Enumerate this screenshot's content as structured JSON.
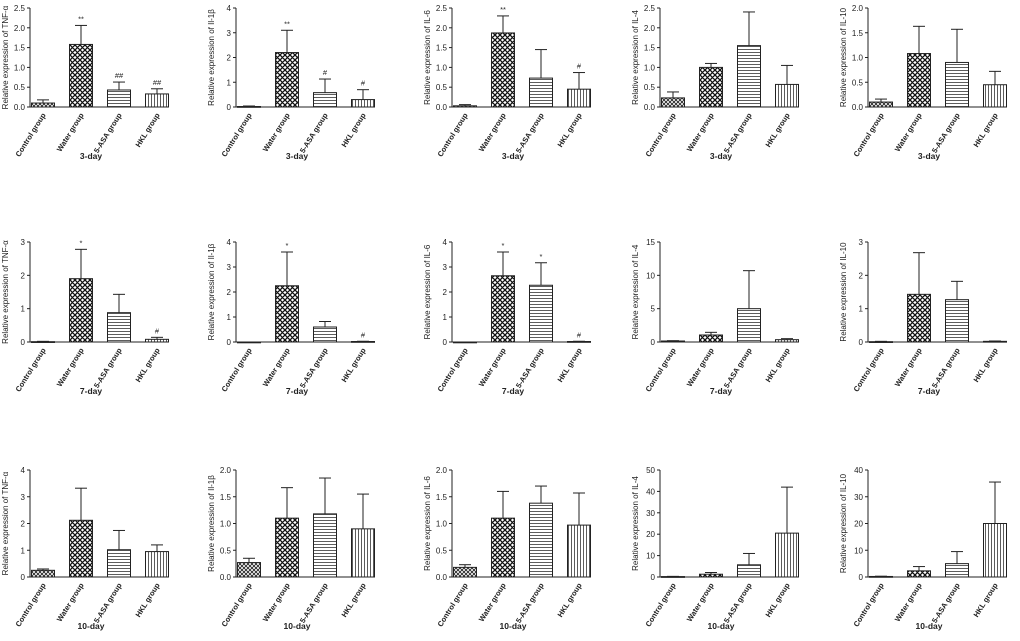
{
  "patterns": {
    "Control group": "crosshatch-dense",
    "Water group": "checker",
    "5-ASA group": "horizontal-lines",
    "HKL group": "vertical-lines"
  },
  "chart_data": [
    {
      "type": "bar",
      "ylabel": "Relative expression of TNF-α",
      "xlabel": "3-day",
      "categories": [
        "Control group",
        "Water group",
        "5-ASA group",
        "HKL group"
      ],
      "values": [
        0.1,
        1.58,
        0.43,
        0.33
      ],
      "errors": [
        0.08,
        0.48,
        0.2,
        0.13
      ],
      "sig": [
        "",
        "**",
        "##",
        "##"
      ],
      "ylim": [
        0,
        2.5
      ],
      "yticks": [
        0,
        0.5,
        1.0,
        1.5,
        2.0,
        2.5
      ],
      "tick_labels": [
        "0.0",
        "0.5",
        "1.0",
        "1.5",
        "2.0",
        "2.5"
      ]
    },
    {
      "type": "bar",
      "ylabel": "Relative expression of Il-1β",
      "xlabel": "3-day",
      "categories": [
        "Control group",
        "Water group",
        "5-ASA group",
        "HKL group"
      ],
      "values": [
        0.02,
        2.2,
        0.58,
        0.3
      ],
      "errors": [
        0.02,
        0.9,
        0.55,
        0.4
      ],
      "sig": [
        "",
        "**",
        "#",
        "#"
      ],
      "ylim": [
        0,
        4
      ],
      "yticks": [
        0,
        1,
        2,
        3,
        4
      ],
      "tick_labels": [
        "0",
        "1",
        "2",
        "3",
        "4"
      ]
    },
    {
      "type": "bar",
      "ylabel": "Relative expression of IL-6",
      "xlabel": "3-day",
      "categories": [
        "Control group",
        "Water group",
        "5-ASA group",
        "HKL group"
      ],
      "values": [
        0.03,
        1.87,
        0.73,
        0.45
      ],
      "errors": [
        0.03,
        0.43,
        0.72,
        0.42
      ],
      "sig": [
        "",
        "**",
        "",
        "#"
      ],
      "ylim": [
        0,
        2.5
      ],
      "yticks": [
        0,
        0.5,
        1.0,
        1.5,
        2.0,
        2.5
      ],
      "tick_labels": [
        "0.0",
        "0.5",
        "1.0",
        "1.5",
        "2.0",
        "2.5"
      ]
    },
    {
      "type": "bar",
      "ylabel": "Relative expression of IL-4",
      "xlabel": "3-day",
      "categories": [
        "Control group",
        "Water group",
        "5-ASA group",
        "HKL group"
      ],
      "values": [
        0.23,
        1.0,
        1.55,
        0.57
      ],
      "errors": [
        0.15,
        0.1,
        0.85,
        0.48
      ],
      "sig": [
        "",
        "",
        "",
        ""
      ],
      "ylim": [
        0,
        2.5
      ],
      "yticks": [
        0,
        0.5,
        1.0,
        1.5,
        2.0,
        2.5
      ],
      "tick_labels": [
        "0.0",
        "0.5",
        "1.0",
        "1.5",
        "2.0",
        "2.5"
      ]
    },
    {
      "type": "bar",
      "ylabel": "Relative expression of IL-10",
      "xlabel": "3-day",
      "categories": [
        "Control group",
        "Water group",
        "5-ASA group",
        "HKL group"
      ],
      "values": [
        0.1,
        1.08,
        0.9,
        0.45
      ],
      "errors": [
        0.06,
        0.55,
        0.67,
        0.27
      ],
      "sig": [
        "",
        "",
        "",
        ""
      ],
      "ylim": [
        0,
        2.0
      ],
      "yticks": [
        0,
        0.5,
        1.0,
        1.5,
        2.0
      ],
      "tick_labels": [
        "0.0",
        "0.5",
        "1.0",
        "1.5",
        "2.0"
      ]
    },
    {
      "type": "bar",
      "ylabel": "Relative expression of TNF-α",
      "xlabel": "7-day",
      "categories": [
        "Control group",
        "Water group",
        "5-ASA group",
        "HKL group"
      ],
      "values": [
        0.01,
        1.9,
        0.88,
        0.08
      ],
      "errors": [
        0.01,
        0.88,
        0.55,
        0.06
      ],
      "sig": [
        "",
        "*",
        "",
        "#"
      ],
      "ylim": [
        0,
        3
      ],
      "yticks": [
        0,
        1,
        2,
        3
      ],
      "tick_labels": [
        "0",
        "1",
        "2",
        "3"
      ]
    },
    {
      "type": "bar",
      "ylabel": "Relative expression of Il-1β",
      "xlabel": "7-day",
      "categories": [
        "Control group",
        "Water group",
        "5-ASA group",
        "HKL group"
      ],
      "values": [
        0.0,
        2.25,
        0.6,
        0.02
      ],
      "errors": [
        0.0,
        1.35,
        0.22,
        0.01
      ],
      "sig": [
        "",
        "*",
        "",
        "#"
      ],
      "ylim": [
        0,
        4
      ],
      "yticks": [
        0,
        1,
        2,
        3,
        4
      ],
      "tick_labels": [
        "0",
        "1",
        "2",
        "3",
        "4"
      ]
    },
    {
      "type": "bar",
      "ylabel": "Relative expression of IL-6",
      "xlabel": "7-day",
      "categories": [
        "Control group",
        "Water group",
        "5-ASA group",
        "HKL group"
      ],
      "values": [
        0.0,
        2.65,
        2.27,
        0.02
      ],
      "errors": [
        0.0,
        0.95,
        0.9,
        0.01
      ],
      "sig": [
        "",
        "*",
        "*",
        "#"
      ],
      "ylim": [
        0,
        4
      ],
      "yticks": [
        0,
        1,
        2,
        3,
        4
      ],
      "tick_labels": [
        "0",
        "1",
        "2",
        "3",
        "4"
      ]
    },
    {
      "type": "bar",
      "ylabel": "Relative expression of IL-4",
      "xlabel": "7-day",
      "categories": [
        "Control group",
        "Water group",
        "5-ASA group",
        "HKL group"
      ],
      "values": [
        0.15,
        1.05,
        5.0,
        0.35
      ],
      "errors": [
        0.05,
        0.4,
        5.7,
        0.15
      ],
      "sig": [
        "",
        "",
        "",
        ""
      ],
      "ylim": [
        0,
        15
      ],
      "yticks": [
        0,
        5,
        10,
        15
      ],
      "tick_labels": [
        "0",
        "5",
        "10",
        "15"
      ]
    },
    {
      "type": "bar",
      "ylabel": "Relative expression of IL-10",
      "xlabel": "7-day",
      "categories": [
        "Control group",
        "Water group",
        "5-ASA group",
        "HKL group"
      ],
      "values": [
        0.01,
        1.43,
        1.27,
        0.02
      ],
      "errors": [
        0.01,
        1.25,
        0.55,
        0.01
      ],
      "sig": [
        "",
        "",
        "",
        ""
      ],
      "ylim": [
        0,
        3
      ],
      "yticks": [
        0,
        1,
        2,
        3
      ],
      "tick_labels": [
        "0",
        "1",
        "2",
        "3"
      ]
    },
    {
      "type": "bar",
      "ylabel": "Relative expression of TNF-α",
      "xlabel": "10-day",
      "categories": [
        "Control group",
        "Water group",
        "5-ASA group",
        "HKL group"
      ],
      "values": [
        0.25,
        2.12,
        1.02,
        0.95
      ],
      "errors": [
        0.05,
        1.2,
        0.72,
        0.25
      ],
      "sig": [
        "",
        "",
        "",
        ""
      ],
      "ylim": [
        0,
        4
      ],
      "yticks": [
        0,
        1,
        2,
        3,
        4
      ],
      "tick_labels": [
        "0",
        "1",
        "2",
        "3",
        "4"
      ]
    },
    {
      "type": "bar",
      "ylabel": "Relative expression of Il-1β",
      "xlabel": "10-day",
      "categories": [
        "Control group",
        "Water group",
        "5-ASA group",
        "HKL group"
      ],
      "values": [
        0.27,
        1.1,
        1.18,
        0.9
      ],
      "errors": [
        0.08,
        0.57,
        0.67,
        0.65
      ],
      "sig": [
        "",
        "",
        "",
        ""
      ],
      "ylim": [
        0,
        2.0
      ],
      "yticks": [
        0,
        0.5,
        1.0,
        1.5,
        2.0
      ],
      "tick_labels": [
        "0.0",
        "0.5",
        "1.0",
        "1.5",
        "2.0"
      ]
    },
    {
      "type": "bar",
      "ylabel": "Relative expression of IL-6",
      "xlabel": "10-day",
      "categories": [
        "Control group",
        "Water group",
        "5-ASA group",
        "HKL group"
      ],
      "values": [
        0.18,
        1.1,
        1.38,
        0.97
      ],
      "errors": [
        0.05,
        0.5,
        0.32,
        0.6
      ],
      "sig": [
        "",
        "",
        "",
        ""
      ],
      "ylim": [
        0,
        2.0
      ],
      "yticks": [
        0,
        0.5,
        1.0,
        1.5,
        2.0
      ],
      "tick_labels": [
        "0.0",
        "0.5",
        "1.0",
        "1.5",
        "2.0"
      ]
    },
    {
      "type": "bar",
      "ylabel": "Relative expression of IL-4",
      "xlabel": "10-day",
      "categories": [
        "Control group",
        "Water group",
        "5-ASA group",
        "HKL group"
      ],
      "values": [
        0.2,
        1.3,
        5.7,
        20.5
      ],
      "errors": [
        0.1,
        0.8,
        5.3,
        21.5
      ],
      "sig": [
        "",
        "",
        "",
        ""
      ],
      "ylim": [
        0,
        50
      ],
      "yticks": [
        0,
        10,
        20,
        30,
        40,
        50
      ],
      "tick_labels": [
        "0",
        "10",
        "20",
        "30",
        "40",
        "50"
      ]
    },
    {
      "type": "bar",
      "ylabel": "Relative expression of IL-10",
      "xlabel": "10-day",
      "categories": [
        "Control group",
        "Water group",
        "5-ASA group",
        "HKL group"
      ],
      "values": [
        0.2,
        2.3,
        5.0,
        20.0
      ],
      "errors": [
        0.1,
        1.6,
        4.5,
        15.5
      ],
      "sig": [
        "",
        "",
        "",
        ""
      ],
      "ylim": [
        0,
        40
      ],
      "yticks": [
        0,
        10,
        20,
        30,
        40
      ],
      "tick_labels": [
        "0",
        "10",
        "20",
        "30",
        "40"
      ]
    }
  ]
}
